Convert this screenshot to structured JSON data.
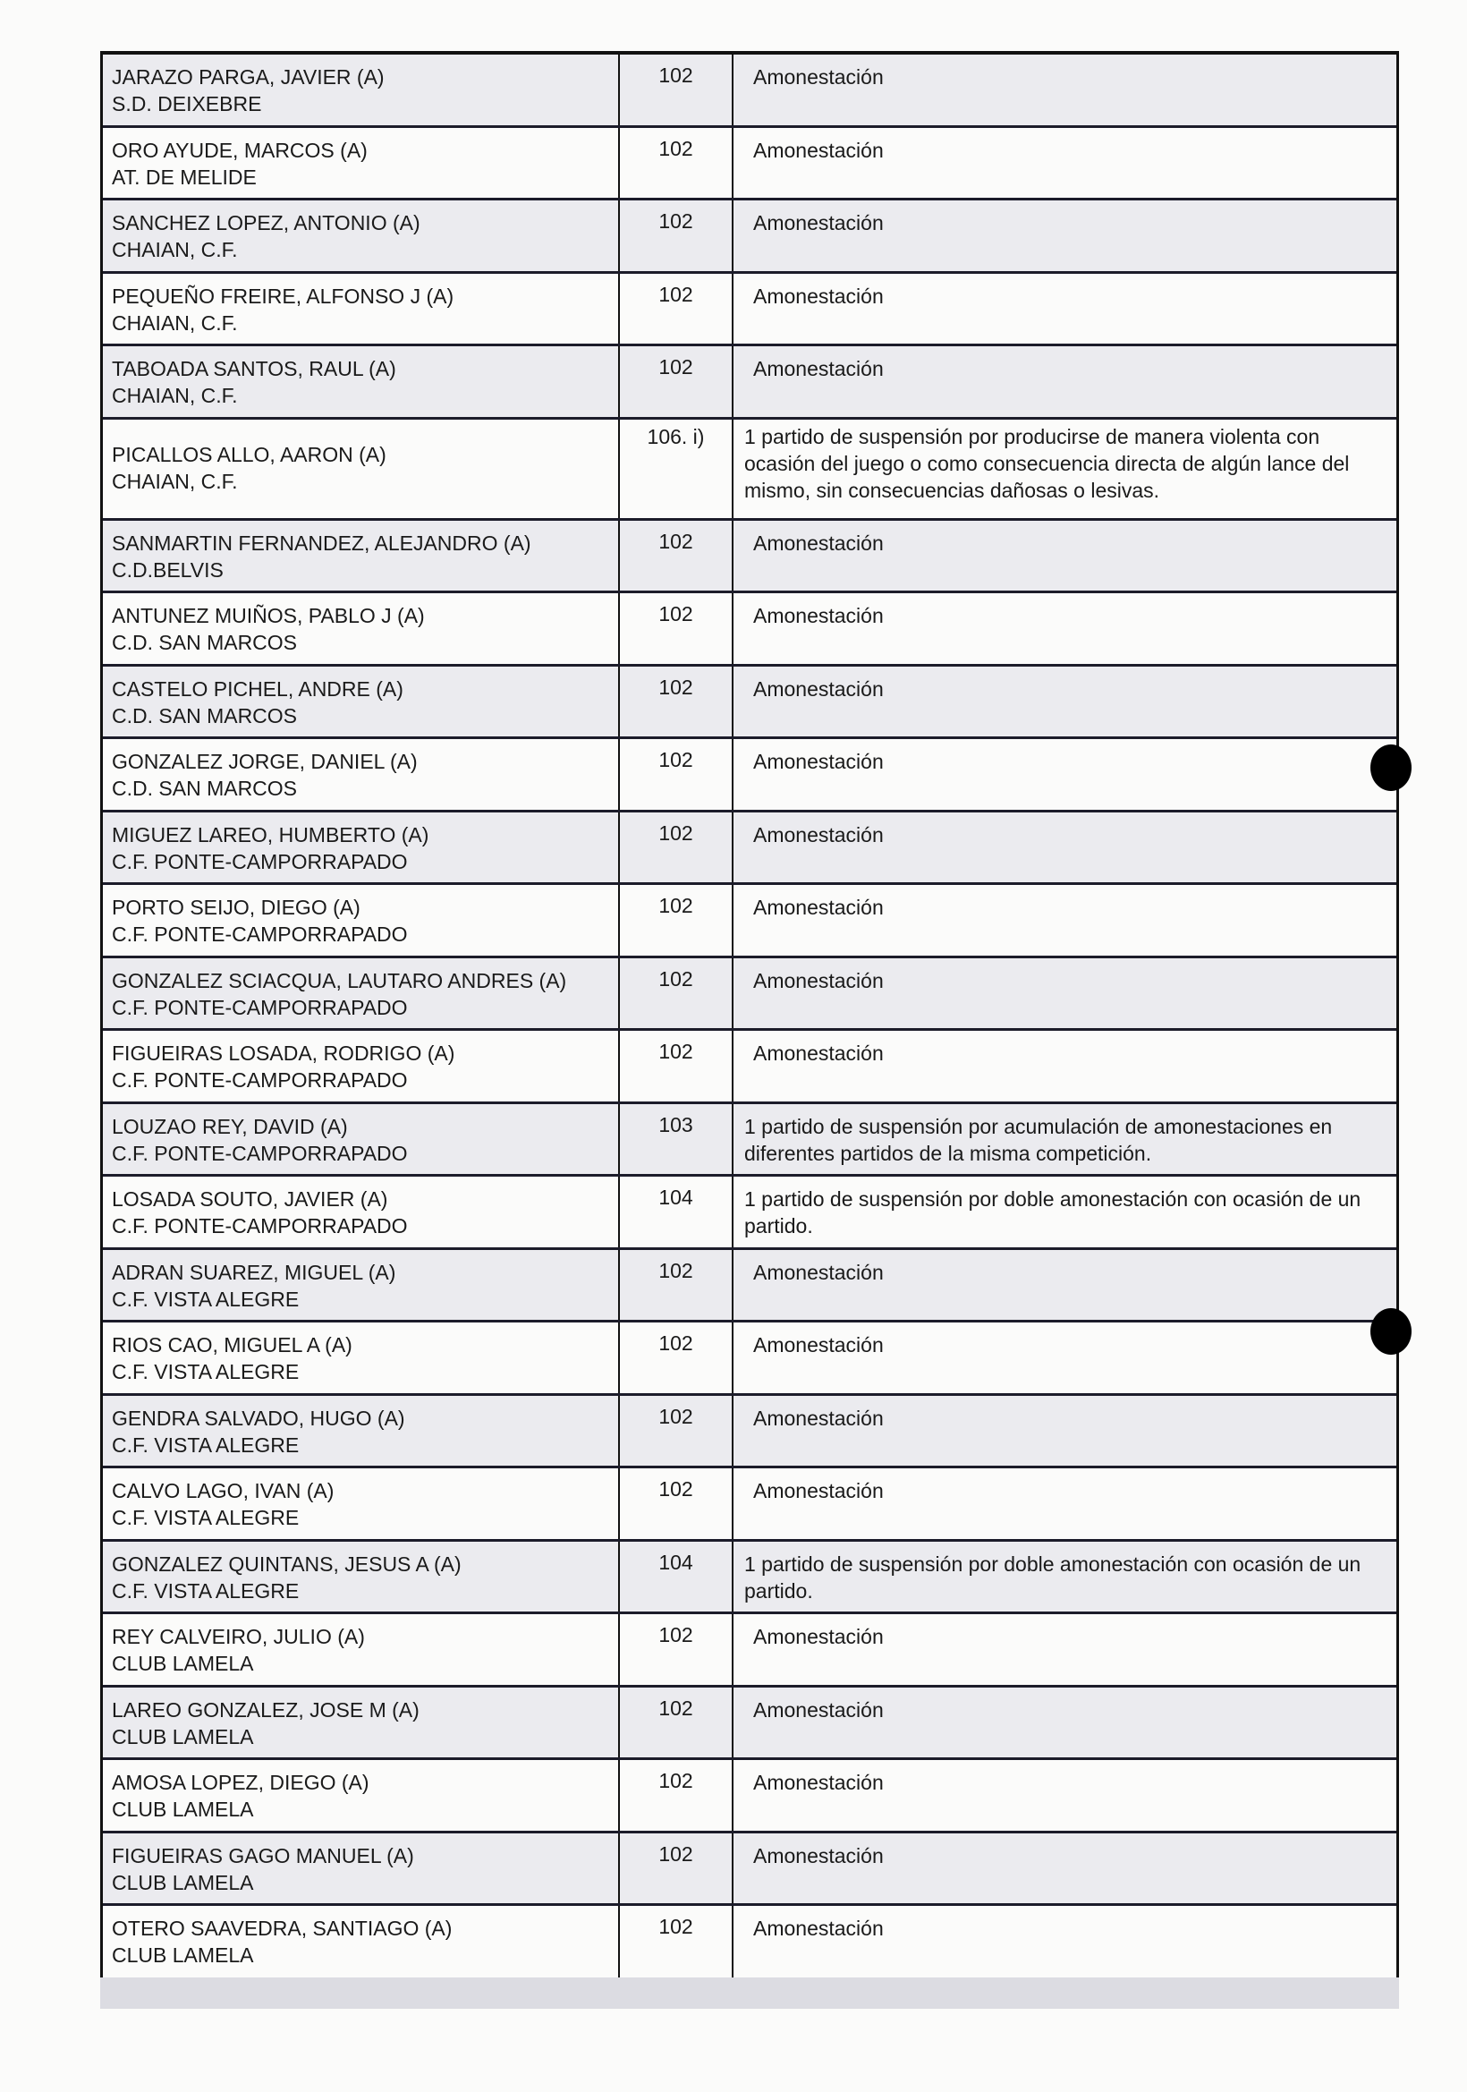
{
  "rows": [
    {
      "name": "JARAZO PARGA, JAVIER (A)",
      "club": "S.D. DEIXEBRE",
      "article": "102",
      "sanction": "Amonestación"
    },
    {
      "name": "ORO AYUDE, MARCOS (A)",
      "club": "AT. DE MELIDE",
      "article": "102",
      "sanction": "Amonestación"
    },
    {
      "name": "SANCHEZ LOPEZ, ANTONIO (A)",
      "club": "CHAIAN, C.F.",
      "article": "102",
      "sanction": "Amonestación"
    },
    {
      "name": "PEQUEÑO FREIRE, ALFONSO J (A)",
      "club": "CHAIAN, C.F.",
      "article": "102",
      "sanction": "Amonestación"
    },
    {
      "name": "TABOADA SANTOS, RAUL (A)",
      "club": "CHAIAN, C.F.",
      "article": "102",
      "sanction": "Amonestación"
    },
    {
      "name": "PICALLOS ALLO, AARON (A)",
      "club": "CHAIAN, C.F.",
      "article": "106. i)",
      "sanction": "1 partido de suspensión por producirse de manera violenta con ocasión del juego o como consecuencia directa de algún lance del mismo, sin consecuencias dañosas o lesivas."
    },
    {
      "name": "SANMARTIN FERNANDEZ, ALEJANDRO (A)",
      "club": "C.D.BELVIS",
      "article": "102",
      "sanction": "Amonestación"
    },
    {
      "name": "ANTUNEZ MUIÑOS, PABLO J (A)",
      "club": "C.D. SAN MARCOS",
      "article": "102",
      "sanction": "Amonestación"
    },
    {
      "name": "CASTELO PICHEL, ANDRE (A)",
      "club": "C.D. SAN MARCOS",
      "article": "102",
      "sanction": "Amonestación"
    },
    {
      "name": "GONZALEZ JORGE, DANIEL (A)",
      "club": "C.D. SAN MARCOS",
      "article": "102",
      "sanction": "Amonestación"
    },
    {
      "name": "MIGUEZ LAREO, HUMBERTO (A)",
      "club": "C.F. PONTE-CAMPORRAPADO",
      "article": "102",
      "sanction": "Amonestación"
    },
    {
      "name": "PORTO SEIJO, DIEGO (A)",
      "club": "C.F. PONTE-CAMPORRAPADO",
      "article": "102",
      "sanction": "Amonestación"
    },
    {
      "name": "GONZALEZ SCIACQUA, LAUTARO ANDRES (A)",
      "club": "C.F. PONTE-CAMPORRAPADO",
      "article": "102",
      "sanction": "Amonestación"
    },
    {
      "name": "FIGUEIRAS LOSADA, RODRIGO (A)",
      "club": "C.F. PONTE-CAMPORRAPADO",
      "article": "102",
      "sanction": "Amonestación"
    },
    {
      "name": "LOUZAO REY, DAVID (A)",
      "club": "C.F. PONTE-CAMPORRAPADO",
      "article": "103",
      "sanction": "1 partido de suspensión por acumulación de amonestaciones en diferentes partidos de la misma competición."
    },
    {
      "name": "LOSADA SOUTO, JAVIER (A)",
      "club": "C.F. PONTE-CAMPORRAPADO",
      "article": "104",
      "sanction": "1 partido de suspensión por doble amonestación con ocasión de un partido."
    },
    {
      "name": "ADRAN SUAREZ, MIGUEL (A)",
      "club": "C.F. VISTA ALEGRE",
      "article": "102",
      "sanction": "Amonestación"
    },
    {
      "name": "RIOS CAO, MIGUEL A (A)",
      "club": "C.F. VISTA ALEGRE",
      "article": "102",
      "sanction": "Amonestación"
    },
    {
      "name": "GENDRA SALVADO, HUGO (A)",
      "club": "C.F. VISTA ALEGRE",
      "article": "102",
      "sanction": "Amonestación"
    },
    {
      "name": "CALVO LAGO, IVAN (A)",
      "club": "C.F. VISTA ALEGRE",
      "article": "102",
      "sanction": "Amonestación"
    },
    {
      "name": "GONZALEZ QUINTANS, JESUS A (A)",
      "club": "C.F. VISTA ALEGRE",
      "article": "104",
      "sanction": "1 partido de suspensión por doble amonestación con ocasión de un partido."
    },
    {
      "name": "REY CALVEIRO, JULIO (A)",
      "club": "CLUB LAMELA",
      "article": "102",
      "sanction": "Amonestación"
    },
    {
      "name": "LAREO GONZALEZ, JOSE M (A)",
      "club": "CLUB LAMELA",
      "article": "102",
      "sanction": "Amonestación"
    },
    {
      "name": "AMOSA LOPEZ, DIEGO (A)",
      "club": "CLUB LAMELA",
      "article": "102",
      "sanction": "Amonestación"
    },
    {
      "name": "FIGUEIRAS GAGO MANUEL (A)",
      "club": "CLUB LAMELA",
      "article": "102",
      "sanction": "Amonestación"
    },
    {
      "name": "OTERO SAAVEDRA, SANTIAGO (A)",
      "club": "CLUB LAMELA",
      "article": "102",
      "sanction": "Amonestación"
    }
  ]
}
